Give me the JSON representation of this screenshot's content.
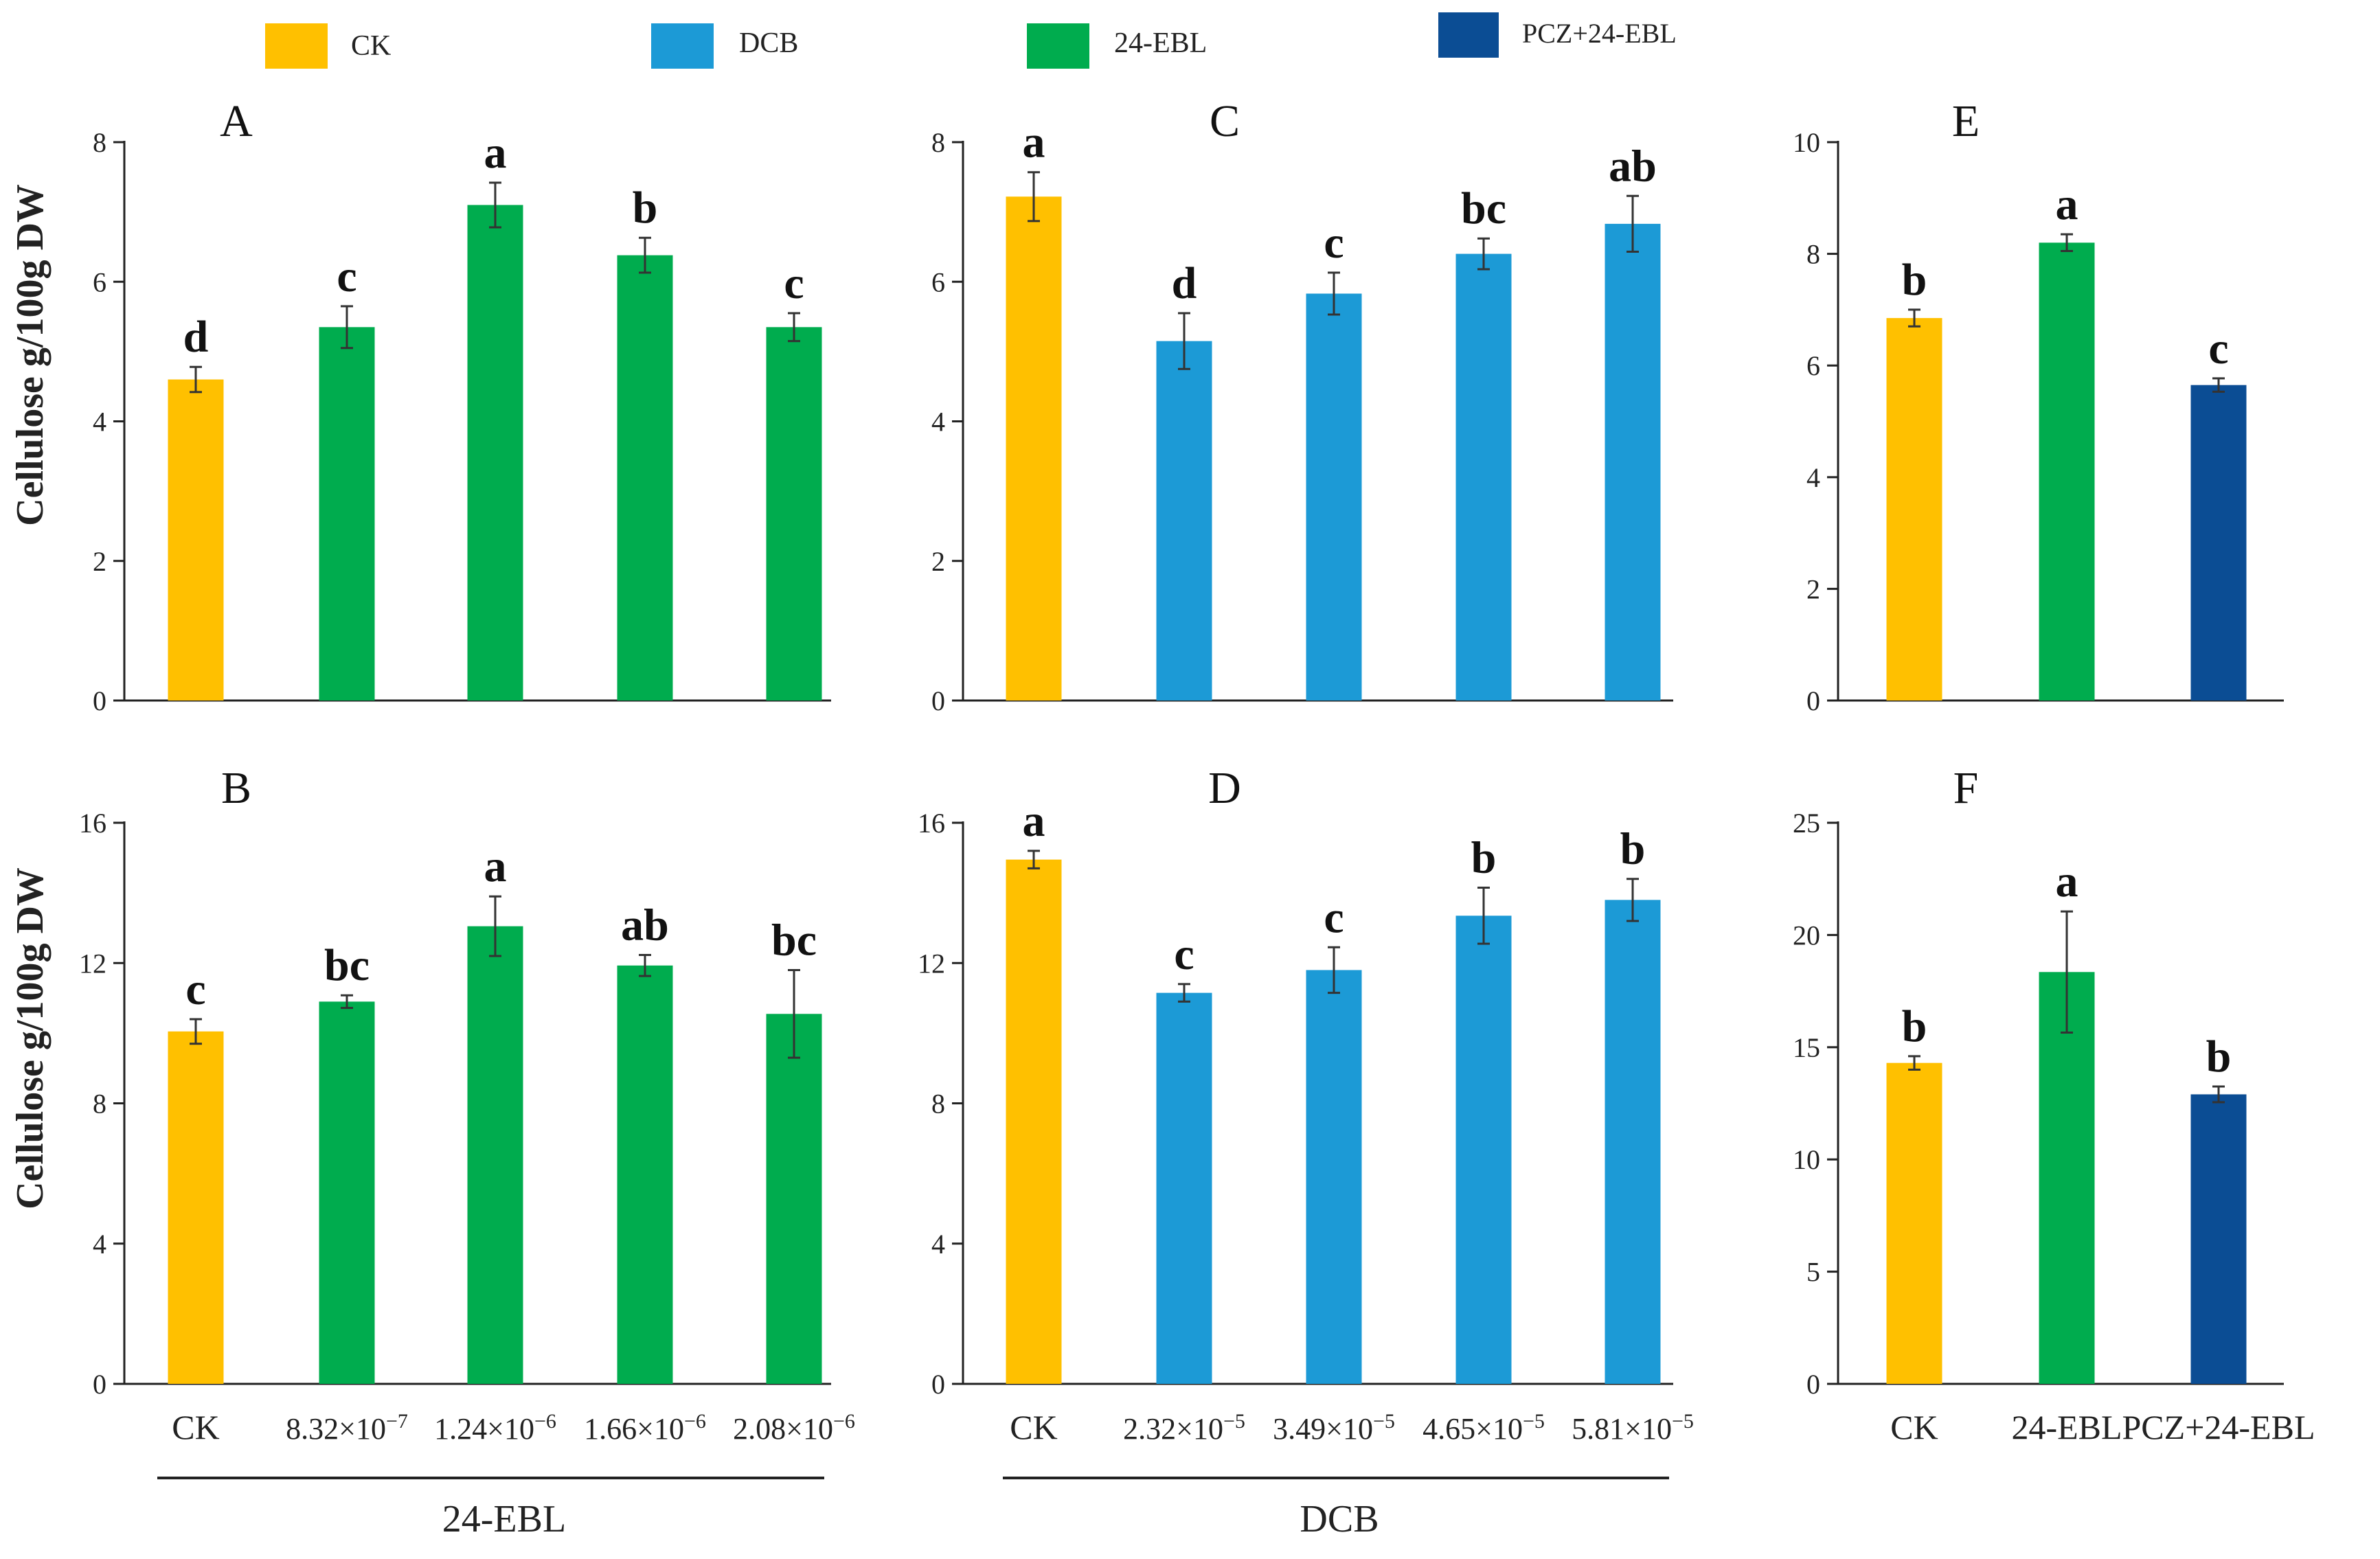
{
  "legend": {
    "items": [
      {
        "label": "CK",
        "color": "#FFC000"
      },
      {
        "label": "DCB",
        "color": "#1C9AD6"
      },
      {
        "label": "24-EBL",
        "color": "#00AC4E"
      },
      {
        "label": "PCZ+24-EBL",
        "color": "#0B4D94"
      }
    ]
  },
  "ylabel_top": "Cellulose g/100g DW",
  "ylabel_bottom": "Cellulose g/100g DW",
  "group_labels": {
    "left": "24-EBL",
    "middle": "DCB"
  },
  "colors": {
    "ck": "#FFC000",
    "dcb": "#1C9AD6",
    "ebl": "#00AC4E",
    "pcz": "#0B4D94"
  },
  "chart_data": [
    {
      "panel": "A",
      "type": "bar",
      "categories": [
        "CK",
        "8.32×10-7",
        "1.24×10-6",
        "1.66×10-6",
        "2.08×10-6"
      ],
      "values": [
        4.6,
        5.35,
        7.1,
        6.38,
        5.35
      ],
      "errors": [
        0.18,
        0.3,
        0.32,
        0.25,
        0.2
      ],
      "letters": [
        "d",
        "c",
        "a",
        "b",
        "c"
      ],
      "bar_colors": [
        "#FFC000",
        "#00AC4E",
        "#00AC4E",
        "#00AC4E",
        "#00AC4E"
      ],
      "ylim": [
        0,
        8
      ],
      "yticks": [
        0,
        2,
        4,
        6,
        8
      ],
      "ylabel": "Cellulose g/100g DW"
    },
    {
      "panel": "C",
      "type": "bar",
      "categories": [
        "CK",
        "2.32×10-5",
        "3.49×10-5",
        "4.65×10-5",
        "5.81×10-5"
      ],
      "values": [
        7.22,
        5.15,
        5.83,
        6.4,
        6.83
      ],
      "errors": [
        0.35,
        0.4,
        0.3,
        0.22,
        0.4
      ],
      "letters": [
        "a",
        "d",
        "c",
        "bc",
        "ab"
      ],
      "bar_colors": [
        "#FFC000",
        "#1C9AD6",
        "#1C9AD6",
        "#1C9AD6",
        "#1C9AD6"
      ],
      "ylim": [
        0,
        8
      ],
      "yticks": [
        0,
        2,
        4,
        6,
        8
      ]
    },
    {
      "panel": "E",
      "type": "bar",
      "categories": [
        "CK",
        "24-EBL",
        "PCZ+24-EBL"
      ],
      "values": [
        6.85,
        8.2,
        5.65
      ],
      "errors": [
        0.15,
        0.15,
        0.12
      ],
      "letters": [
        "b",
        "a",
        "c"
      ],
      "bar_colors": [
        "#FFC000",
        "#00AC4E",
        "#0B4D94"
      ],
      "ylim": [
        0,
        10
      ],
      "yticks": [
        0,
        2,
        4,
        6,
        8,
        10
      ]
    },
    {
      "panel": "B",
      "type": "bar",
      "categories": [
        "CK",
        "8.32×10-7",
        "1.24×10-6",
        "1.66×10-6",
        "2.08×10-6"
      ],
      "values": [
        10.05,
        10.9,
        13.05,
        11.93,
        10.55
      ],
      "errors": [
        0.35,
        0.18,
        0.85,
        0.3,
        1.25
      ],
      "letters": [
        "c",
        "bc",
        "a",
        "ab",
        "bc"
      ],
      "bar_colors": [
        "#FFC000",
        "#00AC4E",
        "#00AC4E",
        "#00AC4E",
        "#00AC4E"
      ],
      "ylim": [
        0,
        16
      ],
      "yticks": [
        0,
        4,
        8,
        12,
        16
      ],
      "ylabel": "Cellulose g/100g DW"
    },
    {
      "panel": "D",
      "type": "bar",
      "categories": [
        "CK",
        "2.32×10-5",
        "3.49×10-5",
        "4.65×10-5",
        "5.81×10-5"
      ],
      "values": [
        14.95,
        11.15,
        11.8,
        13.35,
        13.8
      ],
      "errors": [
        0.25,
        0.25,
        0.65,
        0.8,
        0.6
      ],
      "letters": [
        "a",
        "c",
        "c",
        "b",
        "b"
      ],
      "bar_colors": [
        "#FFC000",
        "#1C9AD6",
        "#1C9AD6",
        "#1C9AD6",
        "#1C9AD6"
      ],
      "ylim": [
        0,
        16
      ],
      "yticks": [
        0,
        4,
        8,
        12,
        16
      ]
    },
    {
      "panel": "F",
      "type": "bar",
      "categories": [
        "CK",
        "24-EBL",
        "PCZ+24-EBL"
      ],
      "values": [
        14.3,
        18.35,
        12.9
      ],
      "errors": [
        0.3,
        2.7,
        0.35
      ],
      "letters": [
        "b",
        "a",
        "b"
      ],
      "bar_colors": [
        "#FFC000",
        "#00AC4E",
        "#0B4D94"
      ],
      "ylim": [
        0,
        25
      ],
      "yticks": [
        0,
        5,
        10,
        15,
        20,
        25
      ]
    }
  ]
}
